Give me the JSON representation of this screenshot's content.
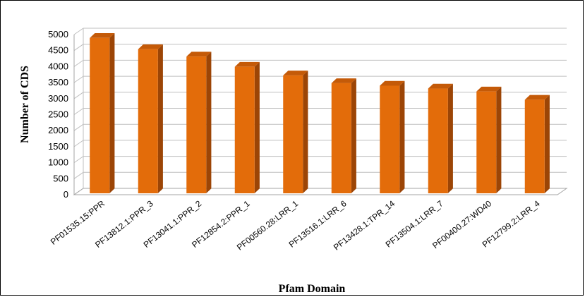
{
  "chart_data": {
    "type": "bar",
    "title": "",
    "xlabel": "Pfam Domain",
    "ylabel": "Number of CDS",
    "categories": [
      "PF01535.15:PPR",
      "PF13812.1:PPR_3",
      "PF13041.1:PPR_2",
      "PF12854.2:PPR_1",
      "PF00560.28:LRR_1",
      "PF13516.1:LRR_6",
      "PF13428.1:TPR_14",
      "PF13504.1:LRR_7",
      "PF00400.27:WD40",
      "PF12799.2:LRR_4"
    ],
    "values": [
      4850,
      4500,
      4270,
      3950,
      3680,
      3440,
      3360,
      3270,
      3180,
      2920
    ],
    "ylim": [
      0,
      5000
    ],
    "yticks": [
      0,
      500,
      1000,
      1500,
      2000,
      2500,
      3000,
      3500,
      4000,
      4500,
      5000
    ],
    "grid": true,
    "style": "3d-column",
    "colors": {
      "bar_front": "#E36C0A",
      "bar_side": "#9C4506",
      "bar_top": "#C45A08",
      "grid": "#BFBFBF",
      "floor": "#A6A6A6"
    }
  }
}
